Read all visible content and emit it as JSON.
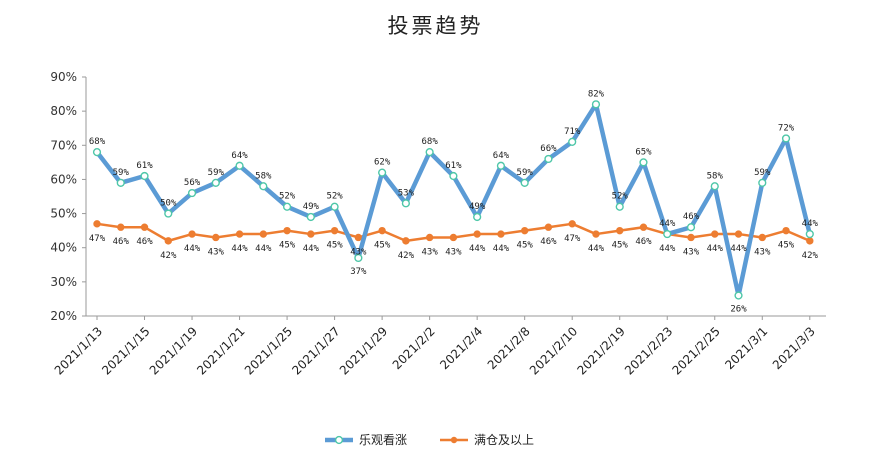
{
  "chart_data": {
    "type": "line",
    "title": "投票趋势",
    "ylim": [
      20,
      90
    ],
    "yticks": [
      "20%",
      "30%",
      "40%",
      "50%",
      "60%",
      "70%",
      "80%",
      "90%"
    ],
    "ytick_values": [
      20,
      30,
      40,
      50,
      60,
      70,
      80,
      90
    ],
    "x_tick_labels": [
      "2021/1/13",
      "2021/1/15",
      "2021/1/19",
      "2021/1/21",
      "2021/1/25",
      "2021/1/27",
      "2021/1/29",
      "2021/2/2",
      "2021/2/4",
      "2021/2/8",
      "2021/2/10",
      "2021/2/19",
      "2021/2/23",
      "2021/2/25",
      "2021/3/1",
      "2021/3/3"
    ],
    "grid": false,
    "legend": "bottom",
    "series": [
      {
        "name": "乐观看涨",
        "color": "#5b9bd5",
        "values": [
          68,
          59,
          61,
          50,
          56,
          59,
          64,
          58,
          52,
          49,
          52,
          37,
          62,
          53,
          68,
          61,
          49,
          64,
          59,
          66,
          71,
          82,
          52,
          65,
          44,
          46,
          58,
          26,
          59,
          72,
          44
        ],
        "labels": [
          "68%",
          "59%",
          "61%",
          "50%",
          "56%",
          "59%",
          "64%",
          "58%",
          "52%",
          "49%",
          "52%",
          "37%",
          "62%",
          "53%",
          "68%",
          "61%",
          "49%",
          "64%",
          "59%",
          "66%",
          "71%",
          "82%",
          "52%",
          "65%",
          "44%",
          "46%",
          "58%",
          "26%",
          "59%",
          "72%",
          "44%"
        ]
      },
      {
        "name": "满仓及以上",
        "color": "#ed7d31",
        "values": [
          47,
          46,
          46,
          42,
          44,
          43,
          44,
          44,
          45,
          44,
          45,
          43,
          45,
          42,
          43,
          43,
          44,
          44,
          45,
          46,
          47,
          44,
          45,
          46,
          44,
          43,
          44,
          44,
          43,
          45,
          42
        ],
        "labels": [
          "47%",
          "46%",
          "46%",
          "42%",
          "44%",
          "43%",
          "44%",
          "44%",
          "45%",
          "44%",
          "45%",
          "43%",
          "45%",
          "42%",
          "43%",
          "43%",
          "44%",
          "44%",
          "45%",
          "46%",
          "47%",
          "44%",
          "45%",
          "46%",
          "44%",
          "43%",
          "44%",
          "44%",
          "43%",
          "45%",
          "42%"
        ]
      }
    ]
  }
}
